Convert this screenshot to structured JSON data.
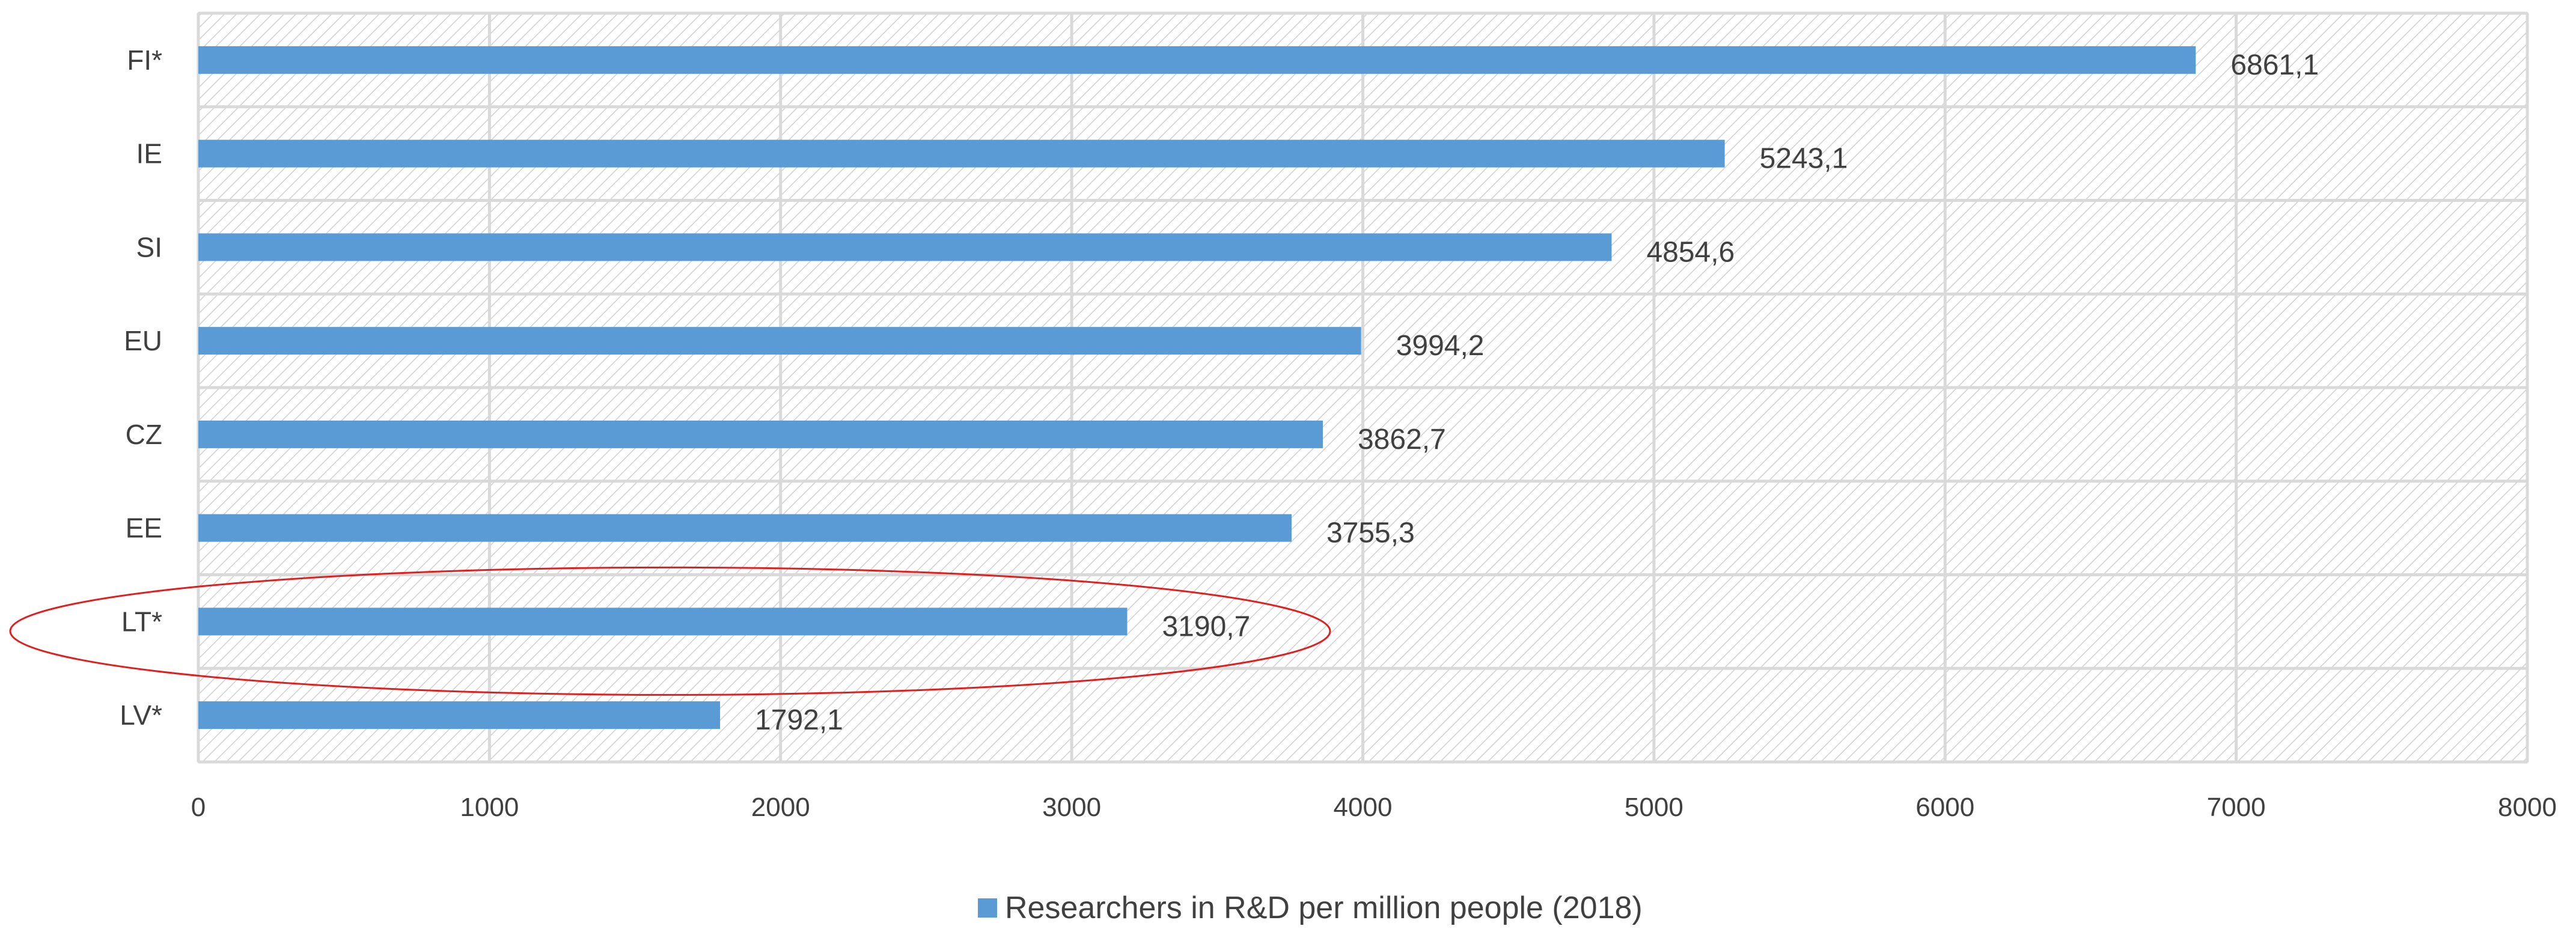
{
  "colors": {
    "bar": "#5b9bd5",
    "grid": "#d9d9d9",
    "hatch": "#d0d0d0",
    "axis": "#bfbfbf",
    "highlight": "#e02020",
    "text": "#404040"
  },
  "chart_data": {
    "type": "bar",
    "orientation": "horizontal",
    "categories": [
      "FI*",
      "IE",
      "SI",
      "EU",
      "CZ",
      "EE",
      "LT*",
      "LV*"
    ],
    "series": [
      {
        "name": "Researchers in R&D per million people (2018)",
        "values": [
          6861.1,
          5243.1,
          4854.6,
          3994.2,
          3862.7,
          3755.3,
          3190.7,
          1792.1
        ],
        "data_labels": [
          "6861,1",
          "5243,1",
          "4854,6",
          "3994,2",
          "3862,7",
          "3755,3",
          "3190,7",
          "1792,1"
        ]
      }
    ],
    "xlim": [
      0,
      8000
    ],
    "x_ticks": [
      "0",
      "1000",
      "2000",
      "3000",
      "4000",
      "5000",
      "6000",
      "7000",
      "8000"
    ],
    "grid": true,
    "legend_position": "bottom",
    "highlighted_category": "LT*"
  }
}
